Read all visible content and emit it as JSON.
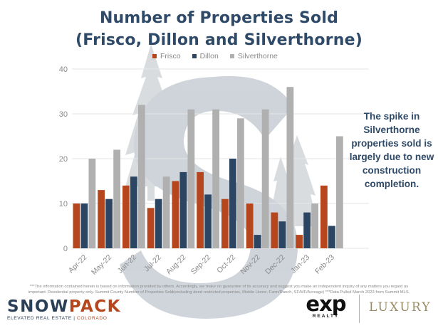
{
  "header": {
    "title_line1": "Number of Properties Sold",
    "title_line2": "(Frisco, Dillon and Silverthorne)"
  },
  "annotation": "The spike in Silverthorne properties sold is largely due to new construction completion.",
  "chart_data": {
    "type": "bar",
    "categories": [
      "Apr-22",
      "May-22",
      "Jun-22",
      "Jul-22",
      "Aug-22",
      "Sep-22",
      "Oct-22",
      "Nov-22",
      "Dec-22",
      "Jan-23",
      "Feb-23",
      ""
    ],
    "series": [
      {
        "name": "Frisco",
        "color": "#b5461d",
        "values": [
          10,
          13,
          14,
          9,
          15,
          17,
          11,
          10,
          8,
          3,
          14,
          null
        ]
      },
      {
        "name": "Dillon",
        "color": "#2b4563",
        "values": [
          10,
          11,
          16,
          11,
          17,
          12,
          20,
          3,
          6,
          8,
          5,
          null
        ]
      },
      {
        "name": "Silverthorne",
        "color": "#b0b0b0",
        "values": [
          20,
          22,
          32,
          16,
          31,
          31,
          29,
          31,
          36,
          10,
          25,
          null
        ]
      }
    ],
    "ylim": [
      0,
      40
    ],
    "yticks": [
      0,
      10,
      20,
      30,
      40
    ],
    "grid": true,
    "legend_position": "top",
    "title": "Number of Properties Sold (Frisco, Dillon and Silverthorne)"
  },
  "footer": {
    "disclaimer": "***The information contained herein is based on information provided by others. Accordingly, we make no guarantee of its accuracy and suggest you make an independent inquiry of any matters you regard as important. Residential property only. Summit County Number of Properties Sold(excluding deed restricted properties, Mobile Home, Farm/Ranch, SF/MF/Acreage) ***Data Pulled March 2023 from Summit MLS.",
    "brand_snow": "SNOW",
    "brand_pack": "PACK",
    "tagline_left": "ELEVATED REAL ESTATE | ",
    "tagline_right": "COLORADO",
    "exp_main": "exp",
    "exp_sub": "REALTY",
    "luxury": "LUXURY"
  }
}
